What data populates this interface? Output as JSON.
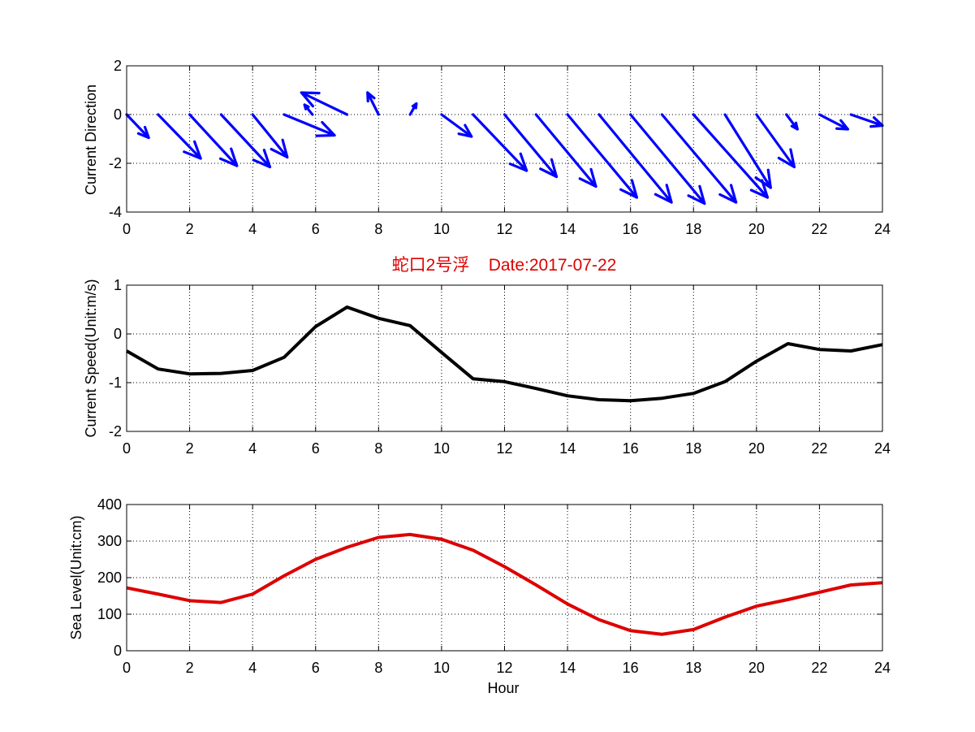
{
  "figure_title": "蛇口2号浮    Date:2017-07-22",
  "colors": {
    "background": "#ffffff",
    "axes": "#000000",
    "grid": "#000000",
    "direction_arrows": "#0000ff",
    "speed_line": "#000000",
    "sea_level_line": "#dd0000",
    "title": "#dd0000"
  },
  "chart_data": [
    {
      "type": "quiver",
      "xlabel": "",
      "ylabel": "Current Direction",
      "xlim": [
        0,
        24
      ],
      "ylim": [
        -4,
        2
      ],
      "xticks": [
        "0",
        "2",
        "4",
        "6",
        "8",
        "10",
        "12",
        "14",
        "16",
        "18",
        "20",
        "22",
        "24"
      ],
      "yticks": [
        "-4",
        "-2",
        "0",
        "2"
      ],
      "grid": true,
      "arrow_origin_y": 0,
      "arrows": [
        {
          "x": 0,
          "dx": 0.7,
          "dy": -0.95
        },
        {
          "x": 1,
          "dx": 1.35,
          "dy": -1.8
        },
        {
          "x": 2,
          "dx": 1.5,
          "dy": -2.1
        },
        {
          "x": 3,
          "dx": 1.55,
          "dy": -2.15
        },
        {
          "x": 4,
          "dx": 1.1,
          "dy": -1.75
        },
        {
          "x": 5,
          "dx": 1.6,
          "dy": -0.85
        },
        {
          "x": 5.9,
          "dx": -0.25,
          "dy": 0.4
        },
        {
          "x": 7,
          "dx": -1.45,
          "dy": 0.9
        },
        {
          "x": 8,
          "dx": -0.35,
          "dy": 0.9
        },
        {
          "x": 9,
          "dx": 0.2,
          "dy": 0.45
        },
        {
          "x": 10,
          "dx": 0.95,
          "dy": -0.9
        },
        {
          "x": 11,
          "dx": 1.7,
          "dy": -2.3
        },
        {
          "x": 12,
          "dx": 1.65,
          "dy": -2.55
        },
        {
          "x": 13,
          "dx": 1.9,
          "dy": -2.95
        },
        {
          "x": 14,
          "dx": 2.2,
          "dy": -3.4
        },
        {
          "x": 15,
          "dx": 2.3,
          "dy": -3.6
        },
        {
          "x": 16,
          "dx": 2.35,
          "dy": -3.65
        },
        {
          "x": 17,
          "dx": 2.35,
          "dy": -3.6
        },
        {
          "x": 18,
          "dx": 2.35,
          "dy": -3.4
        },
        {
          "x": 19,
          "dx": 1.45,
          "dy": -3.0
        },
        {
          "x": 20,
          "dx": 1.2,
          "dy": -2.15
        },
        {
          "x": 20.95,
          "dx": 0.35,
          "dy": -0.6
        },
        {
          "x": 22,
          "dx": 0.9,
          "dy": -0.6
        },
        {
          "x": 23,
          "dx": 1.0,
          "dy": -0.45
        }
      ]
    },
    {
      "type": "line",
      "title": "蛇口2号浮    Date:2017-07-22",
      "xlabel": "",
      "ylabel": "Current Speed(Unit:m/s)",
      "xlim": [
        0,
        24
      ],
      "ylim": [
        -2,
        1
      ],
      "xticks": [
        "0",
        "2",
        "4",
        "6",
        "8",
        "10",
        "12",
        "14",
        "16",
        "18",
        "20",
        "22",
        "24"
      ],
      "yticks": [
        "-2",
        "-1",
        "0",
        "1"
      ],
      "grid": true,
      "x": [
        0,
        1,
        2,
        3,
        4,
        5,
        6,
        7,
        8,
        9,
        10,
        11,
        12,
        13,
        14,
        15,
        16,
        17,
        18,
        19,
        20,
        21,
        22,
        23,
        24
      ],
      "series": [
        {
          "values": [
            -0.35,
            -0.72,
            -0.82,
            -0.81,
            -0.75,
            -0.48,
            0.15,
            0.55,
            0.32,
            0.17,
            -0.38,
            -0.92,
            -0.98,
            -1.12,
            -1.27,
            -1.35,
            -1.37,
            -1.32,
            -1.22,
            -0.98,
            -0.56,
            -0.2,
            -0.32,
            -0.35,
            -0.22
          ]
        }
      ]
    },
    {
      "type": "line",
      "xlabel": "Hour",
      "ylabel": "Sea Level(Unit:cm)",
      "xlim": [
        0,
        24
      ],
      "ylim": [
        0,
        400
      ],
      "xticks": [
        "0",
        "2",
        "4",
        "6",
        "8",
        "10",
        "12",
        "14",
        "16",
        "18",
        "20",
        "22",
        "24"
      ],
      "yticks": [
        "0",
        "100",
        "200",
        "300",
        "400"
      ],
      "grid": true,
      "x": [
        0,
        1,
        2,
        3,
        4,
        5,
        6,
        7,
        8,
        9,
        10,
        11,
        12,
        13,
        14,
        15,
        16,
        17,
        18,
        19,
        20,
        21,
        22,
        23,
        24
      ],
      "series": [
        {
          "values": [
            172,
            155,
            137,
            132,
            155,
            205,
            250,
            283,
            310,
            318,
            305,
            275,
            230,
            180,
            128,
            85,
            55,
            45,
            58,
            92,
            122,
            140,
            160,
            180,
            186
          ]
        }
      ]
    }
  ]
}
